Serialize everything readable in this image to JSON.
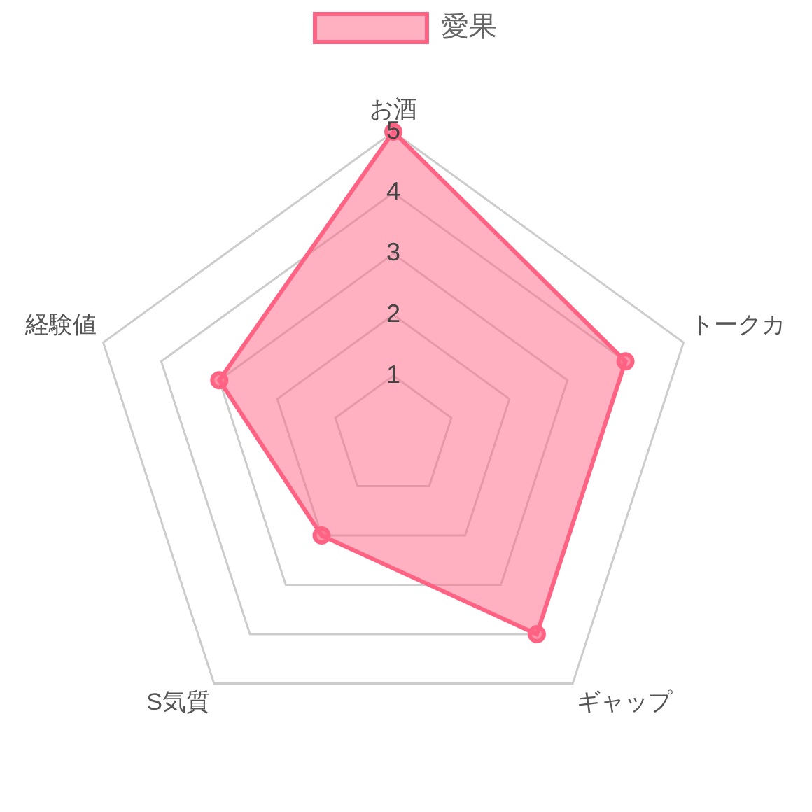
{
  "chart_data": {
    "type": "radar",
    "categories": [
      "お酒",
      "トークカ",
      "ギャップ",
      "S気質",
      "経験値"
    ],
    "series": [
      {
        "name": "愛果",
        "color": "#ff6384",
        "values": [
          5,
          4,
          4,
          2,
          3
        ]
      }
    ],
    "ylim": [
      0,
      5
    ],
    "yticks": [
      1,
      2,
      3,
      4,
      5
    ],
    "grid": true,
    "legend": "top",
    "marker": "circle"
  }
}
